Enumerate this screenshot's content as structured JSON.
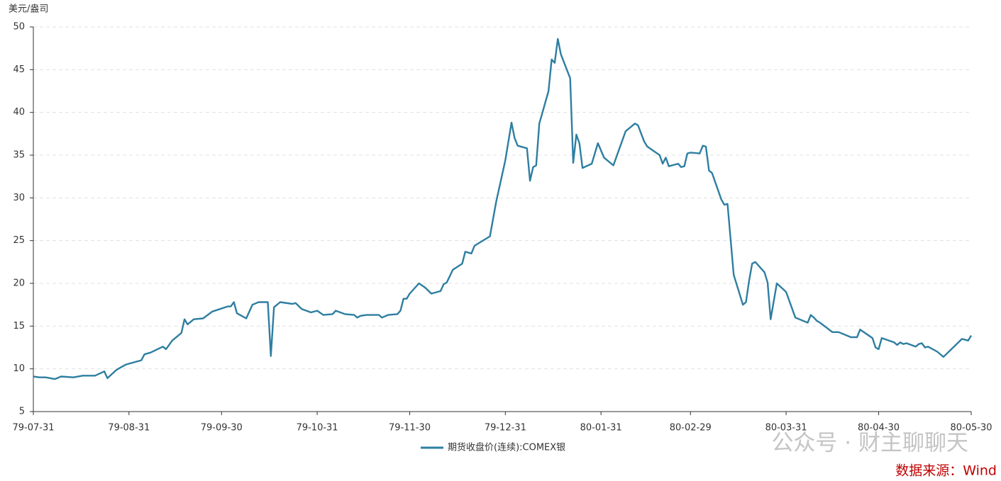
{
  "chart_data": {
    "type": "line",
    "y_axis_label": "美元/盎司",
    "x": [
      "79-07-31",
      "79-08-02",
      "79-08-04",
      "79-08-07",
      "79-08-09",
      "79-08-13",
      "79-08-16",
      "79-08-20",
      "79-08-23",
      "79-08-24",
      "79-08-27",
      "79-08-30",
      "79-09-04",
      "79-09-05",
      "79-09-07",
      "79-09-11",
      "79-09-12",
      "79-09-14",
      "79-09-17",
      "79-09-18",
      "79-09-19",
      "79-09-21",
      "79-09-24",
      "79-09-27",
      "79-10-02",
      "79-10-03",
      "79-10-04",
      "79-10-05",
      "79-10-08",
      "79-10-10",
      "79-10-12",
      "79-10-15",
      "79-10-16",
      "79-10-17",
      "79-10-19",
      "79-10-23",
      "79-10-24",
      "79-10-26",
      "79-10-29",
      "79-10-31",
      "79-11-02",
      "79-11-05",
      "79-11-06",
      "79-11-09",
      "79-11-12",
      "79-11-13",
      "79-11-14",
      "79-11-16",
      "79-11-20",
      "79-11-21",
      "79-11-23",
      "79-11-26",
      "79-11-27",
      "79-11-28",
      "79-11-29",
      "79-11-30",
      "79-12-03",
      "79-12-05",
      "79-12-07",
      "79-12-10",
      "79-12-11",
      "79-12-12",
      "79-12-14",
      "79-12-17",
      "79-12-18",
      "79-12-20",
      "79-12-21",
      "79-12-26",
      "79-12-28",
      "79-12-31",
      "80-01-02",
      "80-01-03",
      "80-01-04",
      "80-01-07",
      "80-01-08",
      "80-01-09",
      "80-01-10",
      "80-01-11",
      "80-01-14",
      "80-01-15",
      "80-01-16",
      "80-01-17",
      "80-01-18",
      "80-01-21",
      "80-01-22",
      "80-01-23",
      "80-01-24",
      "80-01-25",
      "80-01-28",
      "80-01-30",
      "80-02-01",
      "80-02-04",
      "80-02-08",
      "80-02-11",
      "80-02-12",
      "80-02-14",
      "80-02-15",
      "80-02-19",
      "80-02-20",
      "80-02-21",
      "80-02-22",
      "80-02-25",
      "80-02-26",
      "80-02-27",
      "80-02-28",
      "80-02-29",
      "80-03-03",
      "80-03-04",
      "80-03-05",
      "80-03-06",
      "80-03-07",
      "80-03-10",
      "80-03-11",
      "80-03-12",
      "80-03-14",
      "80-03-17",
      "80-03-18",
      "80-03-19",
      "80-03-20",
      "80-03-21",
      "80-03-24",
      "80-03-25",
      "80-03-26",
      "80-03-28",
      "80-03-31",
      "80-04-03",
      "80-04-07",
      "80-04-08",
      "80-04-09",
      "80-04-10",
      "80-04-11",
      "80-04-15",
      "80-04-17",
      "80-04-21",
      "80-04-23",
      "80-04-24",
      "80-04-28",
      "80-04-29",
      "80-04-30",
      "80-05-01",
      "80-05-05",
      "80-05-06",
      "80-05-07",
      "80-05-08",
      "80-05-09",
      "80-05-12",
      "80-05-13",
      "80-05-14",
      "80-05-15",
      "80-05-16",
      "80-05-19",
      "80-05-21",
      "80-05-27",
      "80-05-29",
      "80-05-30"
    ],
    "series": [
      {
        "name": "期货收盘价(连续):COMEX银",
        "color": "#2e7ea1",
        "values": [
          9.1,
          9.0,
          9.0,
          8.8,
          9.1,
          9.0,
          9.2,
          9.2,
          9.7,
          8.9,
          9.9,
          10.5,
          11.0,
          11.7,
          11.9,
          12.6,
          12.3,
          13.3,
          14.2,
          15.8,
          15.2,
          15.8,
          15.9,
          16.7,
          17.3,
          17.3,
          17.8,
          16.5,
          15.9,
          17.5,
          17.8,
          17.8,
          11.5,
          17.2,
          17.8,
          17.6,
          17.7,
          17.0,
          16.6,
          16.8,
          16.3,
          16.4,
          16.8,
          16.4,
          16.3,
          16.0,
          16.2,
          16.3,
          16.3,
          16.0,
          16.3,
          16.4,
          16.8,
          18.2,
          18.2,
          18.8,
          20.0,
          19.5,
          18.8,
          19.1,
          19.9,
          20.1,
          21.6,
          22.3,
          23.7,
          23.5,
          24.4,
          25.5,
          29.5,
          34.4,
          38.8,
          37.0,
          36.1,
          35.8,
          32.0,
          33.6,
          33.8,
          38.7,
          42.5,
          46.2,
          45.8,
          48.6,
          46.8,
          44.0,
          34.1,
          37.4,
          36.4,
          33.5,
          34.0,
          36.4,
          34.7,
          33.8,
          37.8,
          38.7,
          38.5,
          36.6,
          36.0,
          35.0,
          34.0,
          34.7,
          33.7,
          34.0,
          33.6,
          33.7,
          35.2,
          35.3,
          35.2,
          36.1,
          36.0,
          33.2,
          32.9,
          29.8,
          29.2,
          29.3,
          21.0,
          17.5,
          17.8,
          20.3,
          22.3,
          22.5,
          21.3,
          20.1,
          15.8,
          20.0,
          19.0,
          16.0,
          15.4,
          16.3,
          16.0,
          15.6,
          15.4,
          14.3,
          14.3,
          13.7,
          13.7,
          14.6,
          13.6,
          12.5,
          12.3,
          13.6,
          13.1,
          12.8,
          13.1,
          12.9,
          13.0,
          12.6,
          12.9,
          13.0,
          12.5,
          12.6,
          12.0,
          11.4,
          13.5,
          13.3,
          13.9
        ]
      }
    ],
    "xlim": [
      "79-07-31",
      "80-05-30"
    ],
    "xticks": [
      "79-07-31",
      "79-08-31",
      "79-09-30",
      "79-10-31",
      "79-11-30",
      "79-12-31",
      "80-01-31",
      "80-02-29",
      "80-03-31",
      "80-04-30",
      "80-05-30"
    ],
    "ylim": [
      5,
      50
    ],
    "yticks": [
      5,
      10,
      15,
      20,
      25,
      30,
      35,
      40,
      45,
      50
    ],
    "grid": true,
    "legend": "bottom",
    "watermark": "公众号 · 财主聊聊天",
    "source": "数据来源：Wind"
  }
}
